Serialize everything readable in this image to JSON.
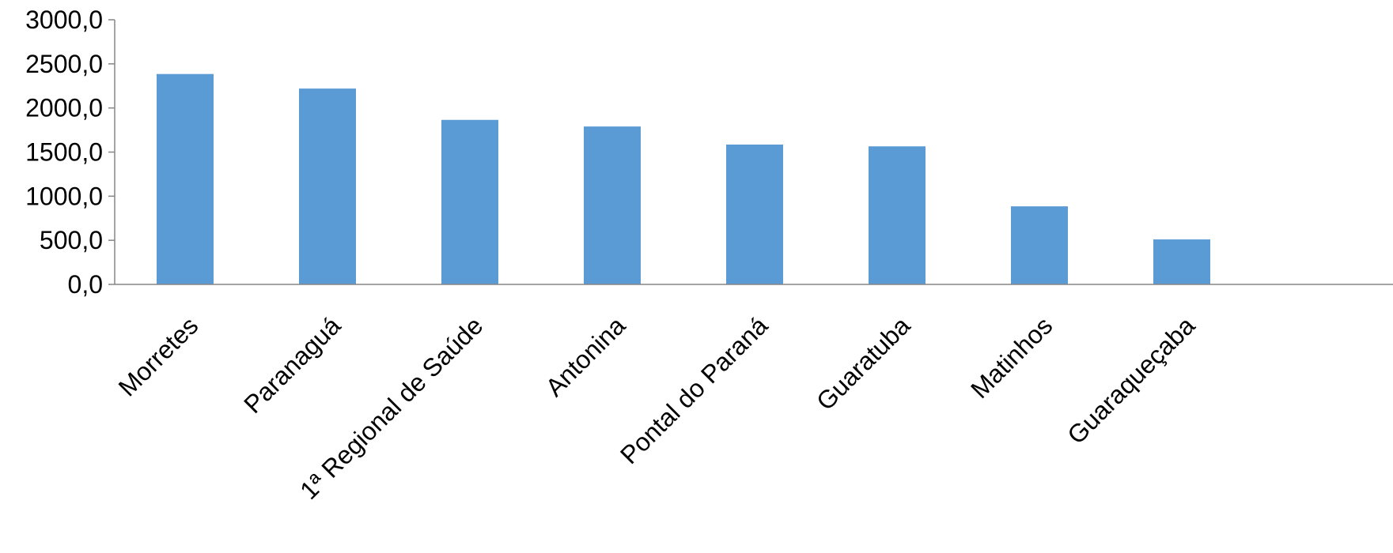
{
  "chart_data": {
    "type": "bar",
    "categories": [
      "Morretes",
      "Paranaguá",
      "1ª Regional de Saúde",
      "Antonina",
      "Pontal do Paraná",
      "Guaratuba",
      "Matinhos",
      "Guaraqueçaba"
    ],
    "values": [
      2385,
      2220,
      1865,
      1790,
      1585,
      1565,
      885,
      510
    ],
    "y_tick_labels": [
      "0,0",
      "500,0",
      "1000,0",
      "1500,0",
      "2000,0",
      "2500,0",
      "3000,0"
    ],
    "ylim": [
      0,
      3000
    ],
    "title": "",
    "xlabel": "",
    "ylabel": "",
    "grid": false,
    "legend": "none",
    "bar_color": "#5B9BD5",
    "axis_color": "#868686"
  }
}
